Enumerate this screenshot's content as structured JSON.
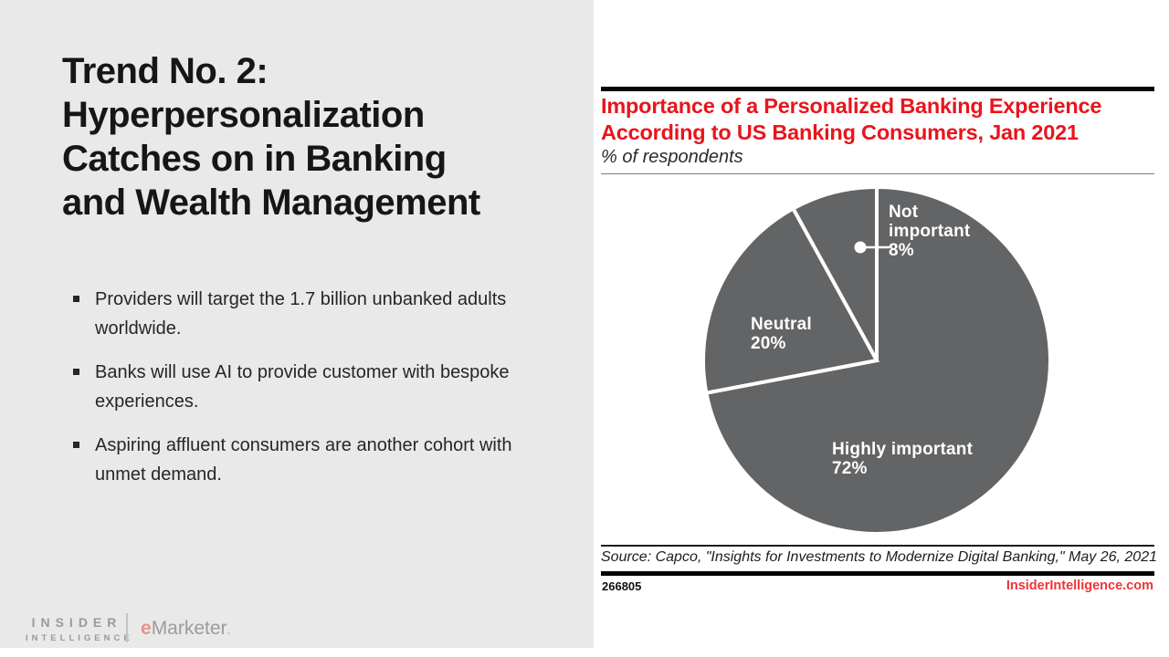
{
  "slide": {
    "title": "Trend No. 2:\nHyperpersonalization\nCatches on in Banking\nand Wealth Management",
    "bullets": [
      "Providers will target the 1.7 billion unbanked adults worldwide.",
      "Banks will use AI to provide customer with bespoke experiences.",
      "Aspiring affluent consumers are another cohort with unmet demand."
    ]
  },
  "logo": {
    "insider_line1": "INSIDER",
    "insider_line2": "INTELLIGENCE",
    "emarketer_e": "e",
    "emarketer_rest": "Marketer",
    "emarketer_period": "."
  },
  "chart": {
    "title": "Importance of a Personalized Banking Experience\nAccording to US Banking Consumers, Jan 2021",
    "subtitle": "% of respondents",
    "source": "Source: Capco, \"Insights for Investments to Modernize Digital Banking,\" May 26, 2021",
    "chart_id": "266805",
    "site": "InsiderIntelligence.com",
    "labels": {
      "not_important": "Not\nimportant\n8%",
      "neutral": "Neutral\n20%",
      "highly_important": "Highly important\n72%"
    }
  },
  "chart_data": {
    "type": "pie",
    "title": "Importance of a Personalized Banking Experience According to US Banking Consumers, Jan 2021",
    "subtitle": "% of respondents",
    "categories": [
      "Highly important",
      "Neutral",
      "Not important"
    ],
    "values": [
      72,
      20,
      8
    ],
    "unit": "%",
    "start_angle_deg": 0,
    "direction": "clockwise",
    "slice_color": "#636466",
    "separator_color": "#ffffff",
    "label_color": "#ffffff",
    "source": "Source: Capco, \"Insights for Investments to Modernize Digital Banking,\" May 26, 2021"
  },
  "colors": {
    "panel_gray": "#e9e9e9",
    "accent_red": "#e9141c",
    "footer_red": "#ef3338",
    "pie_gray": "#636466"
  }
}
